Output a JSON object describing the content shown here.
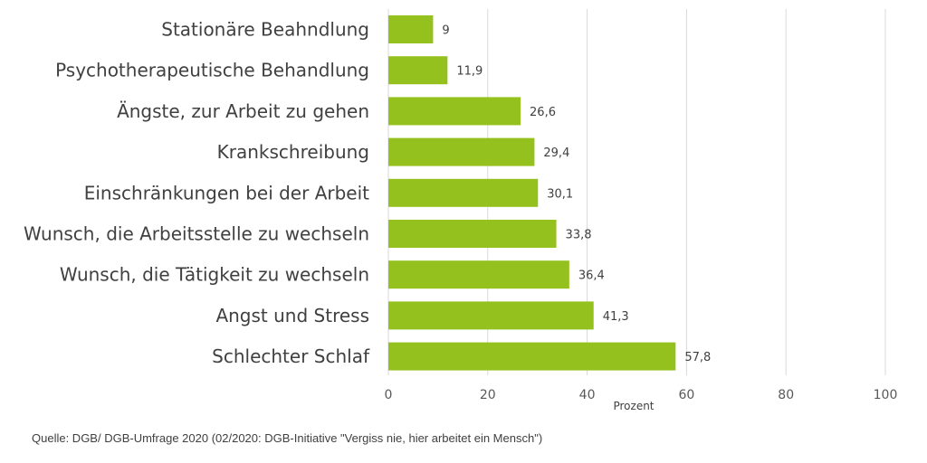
{
  "chart_data": {
    "type": "bar",
    "orientation": "horizontal",
    "categories": [
      "Stationäre Beahndlung",
      "Psychotherapeutische Behandlung",
      "Ängste, zur Arbeit zu gehen",
      "Krankschreibung",
      "Einschränkungen bei der Arbeit",
      "Wunsch, die Arbeitsstelle zu wechseln",
      "Wunsch, die Tätigkeit zu wechseln",
      "Angst und Stress",
      "Schlechter Schlaf"
    ],
    "values": [
      9,
      11.9,
      26.6,
      29.4,
      30.1,
      33.8,
      36.4,
      41.3,
      57.8
    ],
    "value_labels": [
      "9",
      "11,9",
      "26,6",
      "29,4",
      "30,1",
      "33,8",
      "36,4",
      "41,3",
      "57,8"
    ],
    "xlabel": "Prozent",
    "xlim": [
      0,
      100
    ],
    "xticks": [
      0,
      20,
      40,
      60,
      80,
      100
    ],
    "grid": true,
    "bar_color": "#95c11f",
    "grid_color": "#d9d9d9"
  },
  "source": "Quelle: DGB/ DGB-Umfrage 2020 (02/2020: DGB-Initiative \"Vergiss nie, hier arbeitet ein Mensch\")"
}
